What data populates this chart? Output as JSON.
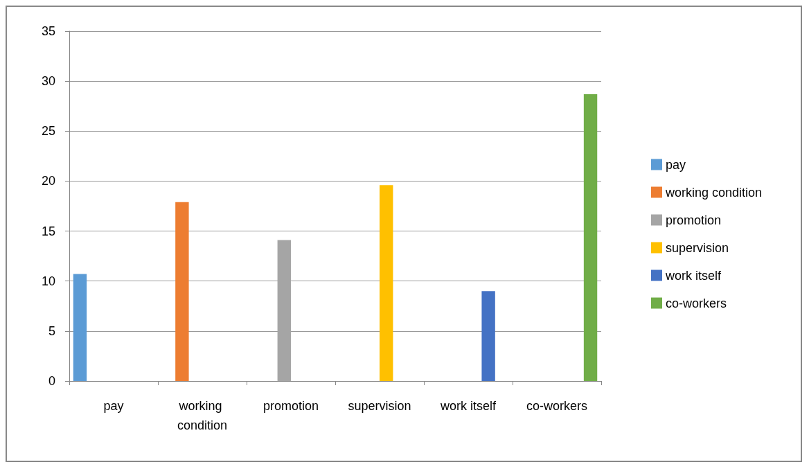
{
  "chart_data": {
    "type": "bar",
    "categories": [
      "pay",
      "working condition",
      "promotion",
      "supervision",
      "work itself",
      "co-workers"
    ],
    "series": [
      {
        "name": "pay",
        "color": "#5b9bd5",
        "values": [
          10.7,
          null,
          null,
          null,
          null,
          null
        ]
      },
      {
        "name": "working condition",
        "color": "#ed7d31",
        "values": [
          null,
          17.9,
          null,
          null,
          null,
          null
        ]
      },
      {
        "name": "promotion",
        "color": "#a5a5a5",
        "values": [
          null,
          null,
          14.1,
          null,
          null,
          null
        ]
      },
      {
        "name": "supervision",
        "color": "#ffc000",
        "values": [
          null,
          null,
          null,
          19.6,
          null,
          null
        ]
      },
      {
        "name": "work itself",
        "color": "#4472c4",
        "values": [
          null,
          null,
          null,
          null,
          9.0,
          null
        ]
      },
      {
        "name": "co-workers",
        "color": "#70ad47",
        "values": [
          null,
          null,
          null,
          null,
          null,
          28.7
        ]
      }
    ],
    "ylim": [
      0,
      35
    ],
    "yticks": [
      0,
      5,
      10,
      15,
      20,
      25,
      30,
      35
    ],
    "grid": "y",
    "legend": "right"
  }
}
